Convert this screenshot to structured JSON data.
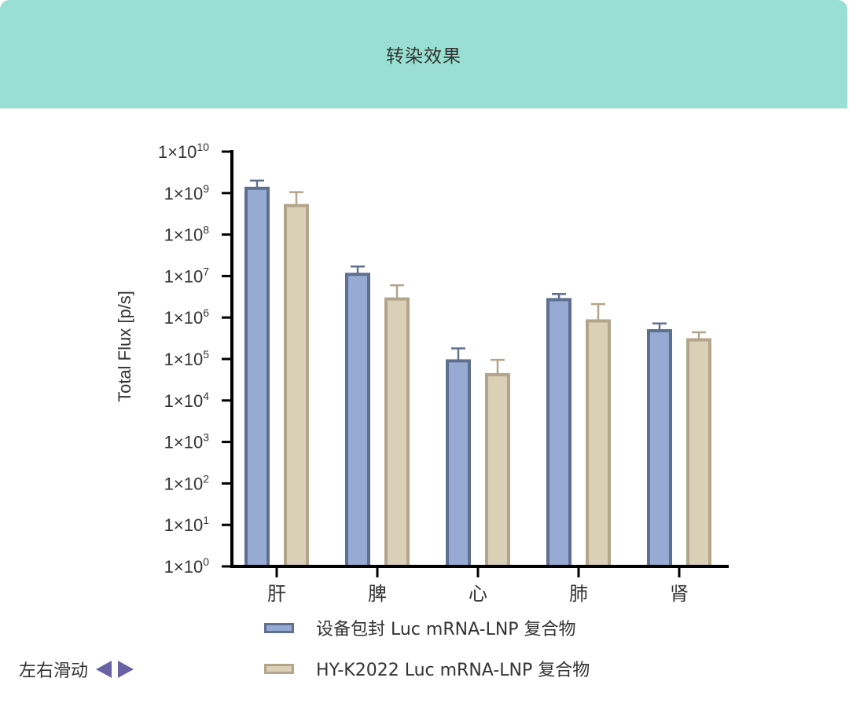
{
  "header": {
    "title": "转染效果"
  },
  "nav": {
    "label": "左右滑动"
  },
  "colors": {
    "header_bg": "#99dfd3",
    "series1_fill": "#97aad3",
    "series1_stroke": "#5f6f8f",
    "series2_fill": "#dacfb7",
    "series2_stroke": "#b3a58b",
    "nav_arrow": "#6b62a6"
  },
  "chart_data": {
    "type": "bar",
    "ylabel": "Total Flux [p/s]",
    "xlabel": "",
    "yscale": "log",
    "ylim": [
      1,
      10000000000
    ],
    "ytick_bases": [
      "1×10",
      "1×10",
      "1×10",
      "1×10",
      "1×10",
      "1×10",
      "1×10",
      "1×10",
      "1×10",
      "1×10",
      "1×10"
    ],
    "ytick_exponents": [
      "0",
      "1",
      "2",
      "3",
      "4",
      "5",
      "6",
      "7",
      "8",
      "9",
      "10"
    ],
    "categories": [
      "肝",
      "脾",
      "心",
      "肺",
      "肾"
    ],
    "series": [
      {
        "name": "设备包封 Luc mRNA-LNP 复合物",
        "values": [
          1300000000,
          11000000,
          90000,
          2700000,
          480000
        ],
        "errors_upper": [
          2000000000,
          17000000,
          180000,
          3700000,
          720000
        ]
      },
      {
        "name": "HY-K2022 Luc mRNA-LNP 复合物",
        "values": [
          500000000,
          2800000,
          42000,
          830000,
          290000
        ],
        "errors_upper": [
          1050000000,
          6000000,
          95000,
          2100000,
          440000
        ]
      }
    ],
    "legend_position": "bottom",
    "grid": false
  }
}
